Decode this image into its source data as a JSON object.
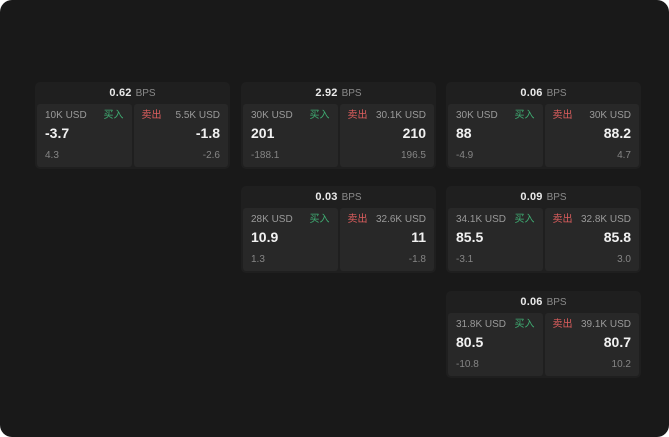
{
  "colors": {
    "background": "#191919",
    "card_background": "#1f1f1f",
    "panel_background": "#282828",
    "buy_green": "#3fae73",
    "sell_red": "#de5e5e",
    "text_primary": "#f2f2f2",
    "text_secondary": "#8a8a8a"
  },
  "labels": {
    "bps": "BPS",
    "buy": "买入",
    "sell": "卖出"
  },
  "cards": [
    {
      "bps": "0.62",
      "buy": {
        "amount": "10K USD",
        "price": "-3.7",
        "sub": "4.3"
      },
      "sell": {
        "amount": "5.5K USD",
        "price": "-1.8",
        "sub": "-2.6"
      }
    },
    {
      "bps": "2.92",
      "buy": {
        "amount": "30K USD",
        "price": "201",
        "sub": "-188.1"
      },
      "sell": {
        "amount": "30.1K USD",
        "price": "210",
        "sub": "196.5"
      }
    },
    {
      "bps": "0.06",
      "buy": {
        "amount": "30K USD",
        "price": "88",
        "sub": "-4.9"
      },
      "sell": {
        "amount": "30K USD",
        "price": "88.2",
        "sub": "4.7"
      }
    },
    {
      "bps": "0.03",
      "buy": {
        "amount": "28K USD",
        "price": "10.9",
        "sub": "1.3"
      },
      "sell": {
        "amount": "32.6K USD",
        "price": "11",
        "sub": "-1.8"
      }
    },
    {
      "bps": "0.09",
      "buy": {
        "amount": "34.1K USD",
        "price": "85.5",
        "sub": "-3.1"
      },
      "sell": {
        "amount": "32.8K USD",
        "price": "85.8",
        "sub": "3.0"
      }
    },
    {
      "bps": "0.06",
      "buy": {
        "amount": "31.8K USD",
        "price": "80.5",
        "sub": "-10.8"
      },
      "sell": {
        "amount": "39.1K USD",
        "price": "80.7",
        "sub": "10.2"
      }
    }
  ]
}
